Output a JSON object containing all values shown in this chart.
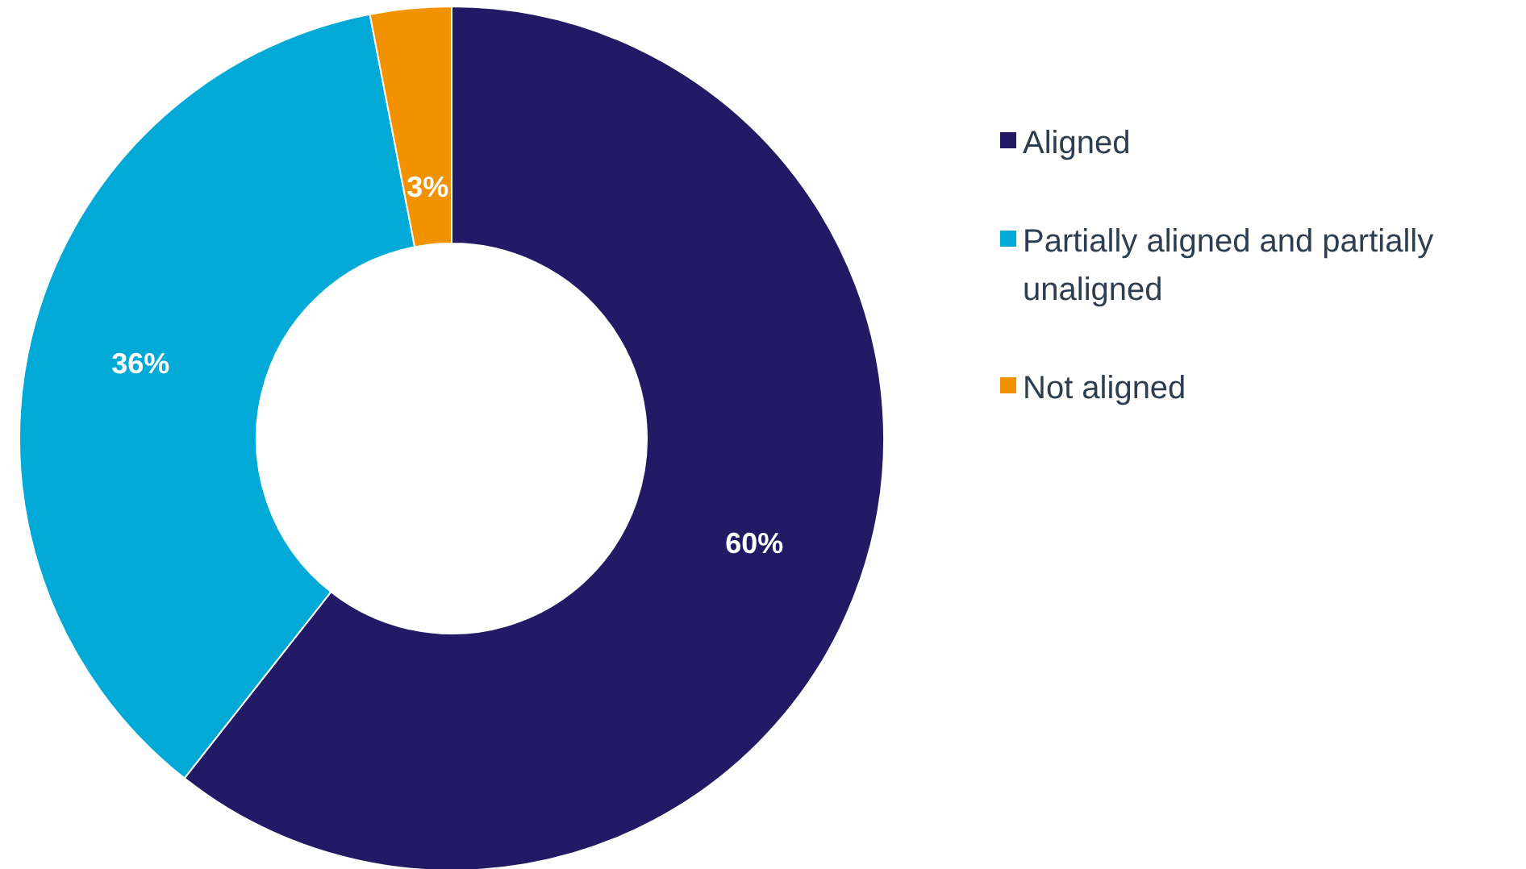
{
  "chart_data": {
    "type": "donut",
    "categories": [
      "Aligned",
      "Partially aligned and partially unaligned",
      "Not aligned"
    ],
    "values": [
      60,
      36,
      3
    ],
    "colors": [
      "#221a64",
      "#00a9d6",
      "#f39200"
    ],
    "value_labels": [
      "60%",
      "36%",
      "3%"
    ],
    "legend": "right"
  }
}
